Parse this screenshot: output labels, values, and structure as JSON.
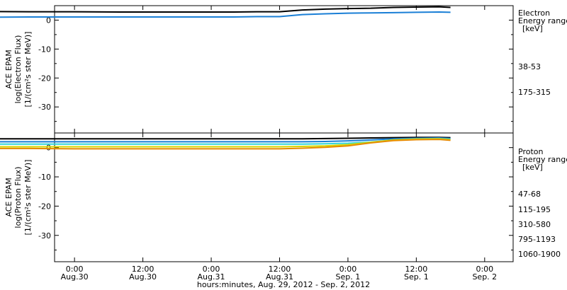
{
  "chart_data": [
    {
      "type": "line",
      "panel": "electron",
      "ylabel_lines": [
        "ACE EPAM",
        "log(Electron Flux)",
        "[1/(cm²s ster MeV)]"
      ],
      "y_ticks": [
        0,
        -10,
        -20,
        -30
      ],
      "ylim": [
        -39,
        5
      ],
      "legend_title": [
        "Electron",
        "Energy range",
        "[keV]"
      ],
      "legend_placement": "right",
      "x_hours_since_aug29_00": [
        0,
        8,
        16,
        24,
        32,
        40,
        48,
        52,
        56,
        60,
        64,
        68,
        72,
        76,
        80,
        84,
        88,
        90
      ],
      "series": [
        {
          "name": "38-53",
          "color": "#000000",
          "values": [
            3.0,
            3.0,
            2.9,
            2.9,
            2.8,
            2.8,
            2.8,
            2.8,
            2.9,
            2.9,
            3.5,
            3.8,
            4.0,
            4.1,
            4.4,
            4.5,
            4.6,
            4.4
          ]
        },
        {
          "name": "175-315",
          "color": "#1a7fd6",
          "values": [
            1.0,
            1.0,
            1.1,
            1.1,
            1.1,
            1.1,
            1.1,
            1.1,
            1.2,
            1.2,
            1.9,
            2.2,
            2.4,
            2.5,
            2.6,
            2.7,
            2.8,
            2.7
          ]
        }
      ]
    },
    {
      "type": "line",
      "panel": "proton",
      "ylabel_lines": [
        "ACE EPAM",
        "log(Proton Flux)",
        "[1/(cm²s ster MeV)]"
      ],
      "y_ticks": [
        0,
        -10,
        -20,
        -30
      ],
      "ylim": [
        -39,
        5
      ],
      "legend_title": [
        "Proton",
        "Energy range",
        "[keV]"
      ],
      "legend_placement": "right",
      "x_hours_since_aug29_00": [
        0,
        8,
        16,
        24,
        32,
        40,
        48,
        52,
        56,
        60,
        64,
        68,
        72,
        76,
        80,
        84,
        88,
        90
      ],
      "series": [
        {
          "name": "47-68",
          "color": "#000000",
          "values": [
            3.0,
            3.0,
            3.0,
            3.0,
            3.0,
            3.0,
            3.0,
            3.0,
            3.0,
            3.0,
            3.0,
            3.1,
            3.2,
            3.3,
            3.4,
            3.5,
            3.5,
            3.4
          ]
        },
        {
          "name": "115-195",
          "color": "#1a7fd6",
          "values": [
            2.0,
            2.0,
            2.0,
            2.0,
            2.0,
            2.0,
            2.0,
            2.0,
            2.0,
            2.0,
            2.0,
            2.1,
            2.3,
            2.6,
            3.0,
            3.2,
            3.3,
            3.1
          ]
        },
        {
          "name": "310-580",
          "color": "#33d6d6",
          "values": [
            1.2,
            1.2,
            1.2,
            1.2,
            1.2,
            1.2,
            1.2,
            1.2,
            1.2,
            1.2,
            1.2,
            1.3,
            1.5,
            1.9,
            2.6,
            3.0,
            3.1,
            2.9
          ]
        },
        {
          "name": "795-1193",
          "color": "#d6d600",
          "values": [
            0.3,
            0.3,
            0.3,
            0.3,
            0.3,
            0.3,
            0.3,
            0.3,
            0.3,
            0.3,
            0.4,
            0.6,
            1.0,
            1.8,
            2.6,
            2.9,
            3.0,
            2.7
          ]
        },
        {
          "name": "1060-1900",
          "color": "#e68a00",
          "values": [
            -0.3,
            -0.3,
            -0.3,
            -0.4,
            -0.4,
            -0.4,
            -0.4,
            -0.4,
            -0.4,
            -0.4,
            -0.2,
            0.1,
            0.6,
            1.6,
            2.4,
            2.7,
            2.8,
            2.5
          ]
        }
      ]
    }
  ],
  "x_axis": {
    "ticks": [
      {
        "hour": 0,
        "top": "0:00",
        "bottom": "Aug.30"
      },
      {
        "hour": 12,
        "top": "12:00",
        "bottom": "Aug.30"
      },
      {
        "hour": 24,
        "top": "0:00",
        "bottom": "Aug.31"
      },
      {
        "hour": 36,
        "top": "12:00",
        "bottom": "Aug.31"
      },
      {
        "hour": 48,
        "top": "0:00",
        "bottom": "Sep. 1"
      },
      {
        "hour": 60,
        "top": "12:00",
        "bottom": "Sep. 1"
      },
      {
        "hour": 72,
        "top": "0:00",
        "bottom": "Sep. 2"
      }
    ],
    "xlim": [
      -3.5,
      77
    ],
    "xlabel": "hours:minutes, Aug. 29, 2012 - Sep.  2, 2012"
  }
}
